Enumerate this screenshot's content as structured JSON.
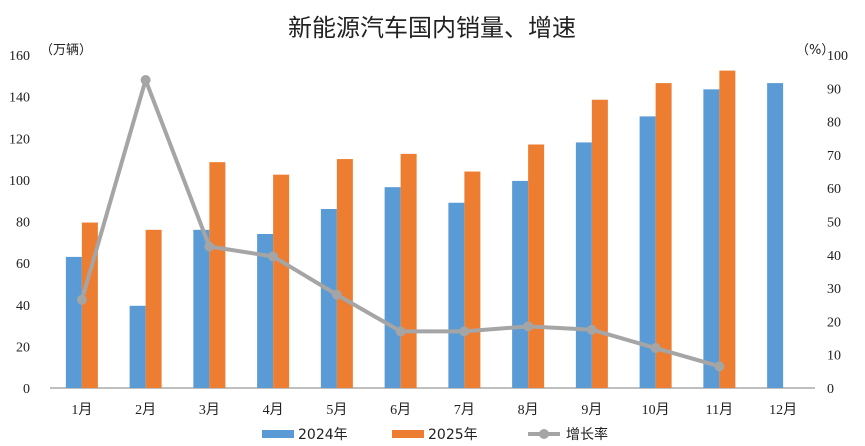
{
  "chart_data": {
    "type": "bar",
    "title": "新能源汽车国内销量、增速",
    "y_left_unit": "（万辆）",
    "y_right_unit": "（%）",
    "categories": [
      "1月",
      "2月",
      "3月",
      "4月",
      "5月",
      "6月",
      "7月",
      "8月",
      "9月",
      "10月",
      "11月",
      "12月"
    ],
    "y_left_ticks": [
      "0",
      "20",
      "40",
      "60",
      "80",
      "100",
      "120",
      "140",
      "160"
    ],
    "y_right_ticks": [
      "0",
      "10",
      "20",
      "30",
      "40",
      "50",
      "60",
      "70",
      "80",
      "90",
      "100"
    ],
    "ylim_left": [
      0,
      160
    ],
    "ylim_right": [
      0,
      100
    ],
    "series": [
      {
        "name": "2024年",
        "kind": "bar",
        "axis": "left",
        "color": "#5b9bd5",
        "values": [
          63,
          39.5,
          76,
          74,
          86,
          96.5,
          89,
          99.5,
          118,
          130.5,
          143.5,
          146.5
        ]
      },
      {
        "name": "2025年",
        "kind": "bar",
        "axis": "left",
        "color": "#ed7d31",
        "values": [
          79.5,
          76,
          108.5,
          102.5,
          110,
          112.5,
          104,
          117,
          138.5,
          146.5,
          152.5,
          null
        ]
      },
      {
        "name": "增长率",
        "kind": "line",
        "axis": "right",
        "color": "#a5a5a5",
        "values": [
          26.5,
          92.5,
          42.5,
          39.5,
          28,
          17,
          17,
          18.5,
          17.5,
          12,
          6.5,
          null
        ]
      }
    ],
    "legend_position": "bottom",
    "grid": false
  }
}
